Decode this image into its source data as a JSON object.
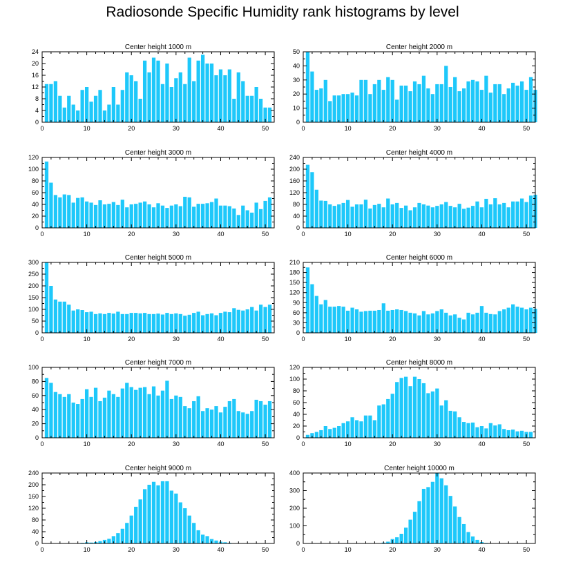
{
  "figure_title": "Radiosonde Specific Humidity rank histograms by level",
  "bar_color": "#1ec8fa",
  "axis_color": "#000000",
  "chart_data": [
    {
      "type": "bar",
      "title": "Center height 1000 m",
      "xlim": [
        0,
        52
      ],
      "ylim": [
        0,
        24
      ],
      "xticks": [
        0,
        10,
        20,
        30,
        40,
        50
      ],
      "yticks": [
        0,
        4,
        8,
        12,
        16,
        20,
        24
      ],
      "values": [
        13,
        13,
        14,
        9,
        5,
        9,
        6,
        4,
        11,
        12,
        7,
        9,
        11,
        4,
        6,
        12,
        6,
        11,
        17,
        16,
        14,
        8,
        21,
        17,
        22,
        21,
        13,
        20,
        12,
        15,
        17,
        13,
        22,
        14,
        21,
        23,
        20,
        20,
        16,
        18,
        16,
        18,
        8,
        17,
        14,
        9,
        9,
        12,
        8,
        5,
        5
      ]
    },
    {
      "type": "bar",
      "title": "Center height 2000 m",
      "xlim": [
        0,
        52
      ],
      "ylim": [
        0,
        50
      ],
      "xticks": [
        0,
        10,
        20,
        30,
        40,
        50
      ],
      "yticks": [
        0,
        10,
        20,
        30,
        40,
        50
      ],
      "values": [
        50,
        36,
        23,
        24,
        30,
        15,
        19,
        19,
        20,
        20,
        21,
        19,
        30,
        30,
        20,
        27,
        30,
        23,
        32,
        30,
        16,
        26,
        26,
        22,
        29,
        27,
        33,
        24,
        20,
        27,
        27,
        40,
        25,
        32,
        22,
        24,
        29,
        30,
        29,
        23,
        33,
        21,
        27,
        27,
        20,
        24,
        28,
        26,
        29,
        23,
        32,
        23
      ]
    },
    {
      "type": "bar",
      "title": "Center height 3000 m",
      "xlim": [
        0,
        52
      ],
      "ylim": [
        0,
        120
      ],
      "xticks": [
        0,
        10,
        20,
        30,
        40,
        50
      ],
      "yticks": [
        0,
        20,
        40,
        60,
        80,
        100,
        120
      ],
      "values": [
        113,
        77,
        56,
        52,
        57,
        56,
        43,
        51,
        52,
        45,
        43,
        39,
        47,
        40,
        41,
        44,
        39,
        48,
        35,
        40,
        41,
        43,
        45,
        40,
        35,
        42,
        38,
        34,
        38,
        40,
        37,
        53,
        52,
        36,
        41,
        41,
        42,
        44,
        50,
        38,
        38,
        37,
        33,
        22,
        38,
        30,
        26,
        43,
        32,
        46,
        52
      ]
    },
    {
      "type": "bar",
      "title": "Center height 4000 m",
      "xlim": [
        0,
        52
      ],
      "ylim": [
        0,
        240
      ],
      "xticks": [
        0,
        10,
        20,
        30,
        40,
        50
      ],
      "yticks": [
        0,
        40,
        80,
        120,
        160,
        200,
        240
      ],
      "values": [
        215,
        190,
        130,
        93,
        92,
        80,
        75,
        80,
        85,
        95,
        72,
        80,
        80,
        96,
        66,
        78,
        82,
        70,
        100,
        80,
        85,
        68,
        76,
        60,
        70,
        85,
        80,
        76,
        70,
        75,
        80,
        88,
        75,
        70,
        82,
        65,
        69,
        75,
        90,
        70,
        99,
        80,
        101,
        80,
        85,
        70,
        90,
        90,
        100,
        88,
        110,
        113
      ]
    },
    {
      "type": "bar",
      "title": "Center height 5000 m",
      "xlim": [
        0,
        52
      ],
      "ylim": [
        0,
        300
      ],
      "xticks": [
        0,
        10,
        20,
        30,
        40,
        50
      ],
      "yticks": [
        0,
        50,
        100,
        150,
        200,
        250,
        300
      ],
      "values": [
        300,
        200,
        142,
        133,
        133,
        120,
        95,
        100,
        97,
        88,
        90,
        80,
        83,
        80,
        85,
        82,
        90,
        80,
        80,
        85,
        85,
        83,
        85,
        80,
        80,
        82,
        78,
        85,
        80,
        83,
        80,
        73,
        77,
        85,
        90,
        75,
        80,
        83,
        75,
        85,
        90,
        88,
        105,
        98,
        95,
        100,
        110,
        95,
        120,
        110,
        120
      ]
    },
    {
      "type": "bar",
      "title": "Center height 6000 m",
      "xlim": [
        0,
        52
      ],
      "ylim": [
        0,
        210
      ],
      "xticks": [
        0,
        10,
        20,
        30,
        40,
        50
      ],
      "yticks": [
        0,
        30,
        60,
        90,
        120,
        150,
        180,
        210
      ],
      "values": [
        195,
        145,
        110,
        85,
        98,
        78,
        78,
        80,
        78,
        66,
        75,
        70,
        63,
        65,
        66,
        66,
        68,
        88,
        66,
        68,
        70,
        68,
        65,
        60,
        58,
        52,
        65,
        55,
        58,
        65,
        70,
        60,
        52,
        55,
        45,
        40,
        60,
        55,
        60,
        80,
        60,
        56,
        55,
        65,
        70,
        75,
        85,
        78,
        75,
        70,
        75,
        72
      ]
    },
    {
      "type": "bar",
      "title": "Center height 7000 m",
      "xlim": [
        0,
        52
      ],
      "ylim": [
        0,
        100
      ],
      "xticks": [
        0,
        10,
        20,
        30,
        40,
        50
      ],
      "yticks": [
        0,
        20,
        40,
        60,
        80,
        100
      ],
      "values": [
        85,
        78,
        65,
        62,
        58,
        62,
        50,
        48,
        55,
        69,
        58,
        71,
        52,
        57,
        67,
        62,
        58,
        70,
        78,
        72,
        68,
        71,
        72,
        62,
        73,
        60,
        67,
        81,
        55,
        60,
        58,
        45,
        42,
        52,
        59,
        38,
        42,
        40,
        45,
        36,
        44,
        52,
        55,
        38,
        36,
        34,
        38,
        54,
        52,
        47,
        52
      ]
    },
    {
      "type": "bar",
      "title": "Center height 8000 m",
      "xlim": [
        0,
        52
      ],
      "ylim": [
        0,
        120
      ],
      "xticks": [
        0,
        10,
        20,
        30,
        40,
        50
      ],
      "yticks": [
        0,
        20,
        40,
        60,
        80,
        100,
        120
      ],
      "values": [
        5,
        8,
        10,
        13,
        20,
        15,
        17,
        20,
        25,
        28,
        35,
        30,
        28,
        38,
        38,
        30,
        55,
        57,
        66,
        75,
        95,
        102,
        104,
        88,
        104,
        100,
        93,
        76,
        79,
        84,
        55,
        64,
        46,
        45,
        35,
        27,
        25,
        26,
        18,
        20,
        16,
        25,
        21,
        23,
        15,
        13,
        14,
        11,
        12,
        10,
        10
      ]
    },
    {
      "type": "bar",
      "title": "Center height 9000 m",
      "xlim": [
        0,
        52
      ],
      "ylim": [
        0,
        240
      ],
      "xticks": [
        0,
        10,
        20,
        30,
        40,
        50
      ],
      "yticks": [
        0,
        40,
        80,
        120,
        160,
        200,
        240
      ],
      "values": [
        0,
        0,
        0,
        0,
        0,
        0,
        0,
        0,
        2,
        4,
        3,
        5,
        8,
        12,
        16,
        25,
        35,
        50,
        70,
        95,
        125,
        150,
        185,
        200,
        210,
        198,
        212,
        212,
        180,
        170,
        140,
        120,
        95,
        70,
        45,
        30,
        25,
        15,
        10,
        6,
        4,
        2,
        1,
        0,
        0,
        0,
        0,
        0,
        0,
        0,
        0
      ]
    },
    {
      "type": "bar",
      "title": "Center height 10000 m",
      "xlim": [
        0,
        52
      ],
      "ylim": [
        0,
        400
      ],
      "xticks": [
        0,
        10,
        20,
        30,
        40,
        50
      ],
      "yticks": [
        0,
        100,
        200,
        300,
        400
      ],
      "values": [
        0,
        0,
        0,
        0,
        0,
        0,
        0,
        0,
        0,
        0,
        0,
        0,
        0,
        0,
        0,
        0,
        0,
        5,
        10,
        25,
        35,
        55,
        90,
        135,
        180,
        240,
        310,
        320,
        350,
        400,
        370,
        330,
        270,
        210,
        150,
        110,
        65,
        40,
        20,
        8,
        3,
        0,
        0,
        0,
        0,
        0,
        0,
        0,
        0,
        0,
        0
      ]
    }
  ]
}
